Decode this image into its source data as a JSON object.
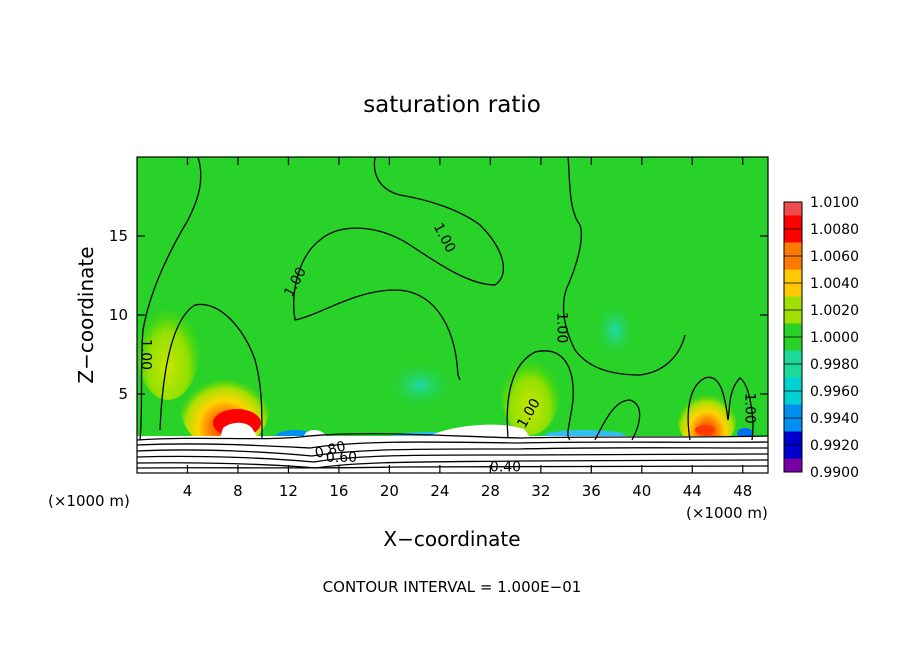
{
  "chart_data": {
    "type": "heatmap",
    "title": "saturation ratio",
    "xlabel": "X−coordinate",
    "ylabel": "Z−coordinate",
    "x_unit_left": "(×1000 m)",
    "x_unit_right": "(×1000 m)",
    "footer": "CONTOUR INTERVAL = 1.000E−01",
    "xlim": [
      0,
      50
    ],
    "ylim": [
      0,
      20
    ],
    "xticks": [
      4,
      8,
      12,
      16,
      20,
      24,
      28,
      32,
      36,
      40,
      44,
      48
    ],
    "xtick_labels": [
      "4",
      "8",
      "12",
      "16",
      "20",
      "24",
      "28",
      "32",
      "36",
      "40",
      "44",
      "48"
    ],
    "yticks": [
      5,
      10,
      15
    ],
    "ytick_labels": [
      "5",
      "10",
      "15"
    ],
    "colorbar": {
      "levels": [
        "1.0100",
        "1.0080",
        "1.0060",
        "1.0040",
        "1.0020",
        "1.0000",
        "0.9980",
        "0.9960",
        "0.9940",
        "0.9920",
        "0.9900"
      ],
      "colors": [
        "#ef4d4d",
        "#ff0000",
        "#ff7a00",
        "#ffc800",
        "#a0e000",
        "#28d228",
        "#1ed79a",
        "#00d2d2",
        "#0090f0",
        "#0000cd",
        "#7a00a8"
      ]
    },
    "contour_labels": [
      {
        "text": "1.00",
        "x": 24.4,
        "y": 14.9,
        "rot": 62
      },
      {
        "text": "1.00",
        "x": 12.5,
        "y": 12.1,
        "rot": -62
      },
      {
        "text": "1.00",
        "x": 33.7,
        "y": 9.2,
        "rot": 90
      },
      {
        "text": "1.00",
        "x": 0.75,
        "y": 7.5,
        "rot": 90
      },
      {
        "text": "1.00",
        "x": 31.0,
        "y": 3.8,
        "rot": -60
      },
      {
        "text": "1.00",
        "x": 48.6,
        "y": 4.1,
        "rot": 90
      },
      {
        "text": "0.80",
        "x": 15.3,
        "y": 1.5,
        "rot": -15
      },
      {
        "text": "0.60",
        "x": 16.2,
        "y": 1.0,
        "rot": 0
      },
      {
        "text": "0.40",
        "x": 29.2,
        "y": 0.4,
        "rot": 0
      }
    ]
  }
}
